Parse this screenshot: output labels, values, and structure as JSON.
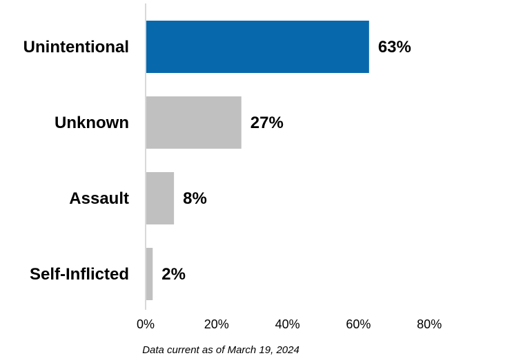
{
  "chart_data": {
    "type": "bar",
    "orientation": "horizontal",
    "categories": [
      "Unintentional",
      "Unknown",
      "Assault",
      "Self-Inflicted"
    ],
    "values": [
      63,
      27,
      8,
      2
    ],
    "value_labels": [
      "63%",
      "27%",
      "8%",
      "2%"
    ],
    "xlim": [
      0,
      80
    ],
    "x_ticks": [
      "0%",
      "20%",
      "40%",
      "60%",
      "80%"
    ],
    "x_tick_values": [
      0,
      20,
      40,
      60,
      80
    ],
    "title": "",
    "xlabel": "",
    "ylabel": "",
    "grid": false,
    "legend": "none",
    "colors": {
      "highlight": "#0868ac",
      "default": "#c0c0c0",
      "axis": "#d9d9d9"
    },
    "highlight_index": 0
  },
  "footnote": "Data current as of March 19, 2024"
}
